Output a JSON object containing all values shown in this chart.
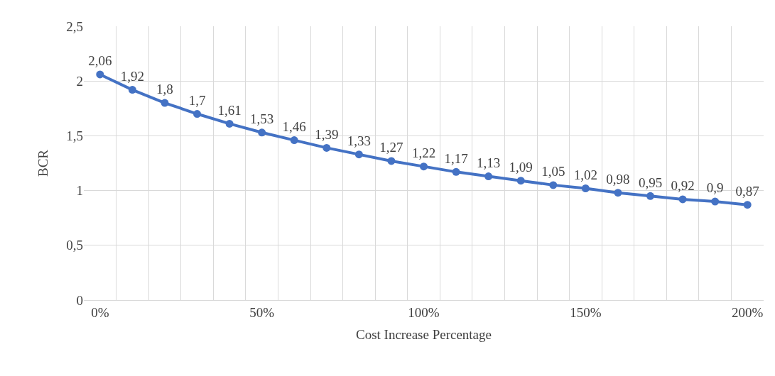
{
  "chart_data": {
    "type": "line",
    "xlabel": "Cost Increase Percentage",
    "ylabel": "BCR",
    "categories": [
      "0%",
      null,
      null,
      null,
      null,
      "50%",
      null,
      null,
      null,
      null,
      "100%",
      null,
      null,
      null,
      null,
      "150%",
      null,
      null,
      null,
      null,
      "200%"
    ],
    "series": [
      {
        "color": "#4472c4",
        "values": [
          2.06,
          1.92,
          1.8,
          1.7,
          1.61,
          1.53,
          1.46,
          1.39,
          1.33,
          1.27,
          1.22,
          1.17,
          1.13,
          1.09,
          1.05,
          1.02,
          0.98,
          0.95,
          0.92,
          0.9,
          0.87
        ],
        "value_labels": [
          "2,06",
          "1,92",
          "1,8",
          "1,7",
          "1,61",
          "1,53",
          "1,46",
          "1,39",
          "1,33",
          "1,27",
          "1,22",
          "1,17",
          "1,13",
          "1,09",
          "1,05",
          "1,02",
          "0,98",
          "0,95",
          "0,92",
          "0,9",
          "0,87"
        ]
      }
    ],
    "ylim": [
      0,
      2.5
    ],
    "yticks": [
      0,
      {
        "value": 0.5,
        "label": "0,5"
      },
      1,
      {
        "value": 1.5,
        "label": "1,5"
      },
      2,
      {
        "value": 2.5,
        "label": "2,5"
      }
    ],
    "grid": true,
    "marker": "circle",
    "line_style": "solid"
  }
}
